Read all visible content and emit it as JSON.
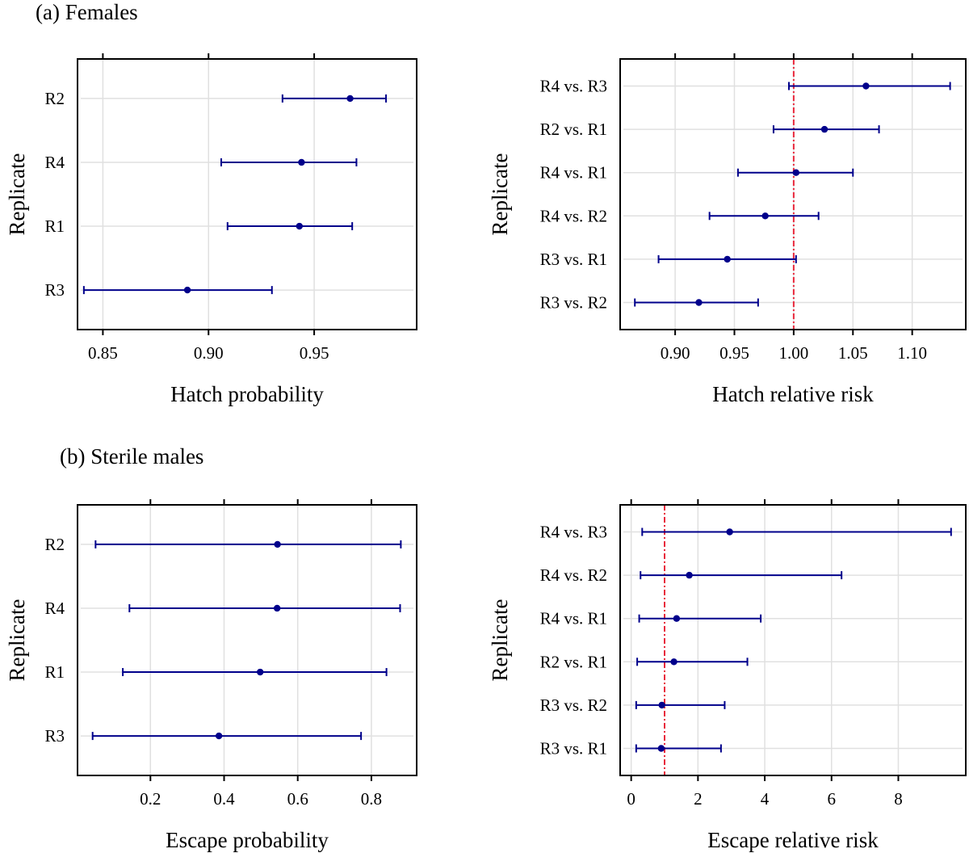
{
  "section_labels": {
    "a": "(a) Females",
    "b": "(b) Sterile males"
  },
  "colors": {
    "marker": "#00008B",
    "reference": "#E8283C",
    "grid": "#E0E0E0",
    "frame": "#000000"
  },
  "chart_data": [
    {
      "type": "scatter",
      "subtype": "forest-errorbar",
      "section": "a",
      "xlabel": "Hatch probability",
      "ylabel": "Replicate",
      "categories": [
        "R2",
        "R4",
        "R1",
        "R3"
      ],
      "estimate": [
        0.967,
        0.944,
        0.943,
        0.89
      ],
      "lower": [
        0.935,
        0.906,
        0.909,
        0.841
      ],
      "upper": [
        0.984,
        0.97,
        0.968,
        0.93
      ],
      "xlim": [
        0.838,
        0.9985
      ],
      "xticks": [
        0.85,
        0.9,
        0.95
      ],
      "xtick_labels": [
        "0.85",
        "0.90",
        "0.95"
      ],
      "reference_line": null,
      "grid": true
    },
    {
      "type": "scatter",
      "subtype": "forest-errorbar",
      "section": "a",
      "xlabel": "Hatch relative risk",
      "ylabel": "Replicate",
      "categories": [
        "R4 vs. R3",
        "R2 vs. R1",
        "R4 vs. R1",
        "R4 vs. R2",
        "R3 vs. R1",
        "R3 vs. R2"
      ],
      "estimate": [
        1.061,
        1.026,
        1.002,
        0.976,
        0.944,
        0.92
      ],
      "lower": [
        0.996,
        0.983,
        0.953,
        0.929,
        0.886,
        0.866
      ],
      "upper": [
        1.132,
        1.072,
        1.05,
        1.021,
        1.002,
        0.97
      ],
      "xlim": [
        0.8536,
        1.1452
      ],
      "xticks": [
        0.9,
        0.95,
        1.0,
        1.05,
        1.1
      ],
      "xtick_labels": [
        "0.90",
        "0.95",
        "1.00",
        "1.05",
        "1.10"
      ],
      "reference_line": 1.0,
      "grid": true
    },
    {
      "type": "scatter",
      "subtype": "forest-errorbar",
      "section": "b",
      "xlabel": "Escape probability",
      "ylabel": "Replicate",
      "categories": [
        "R2",
        "R4",
        "R1",
        "R3"
      ],
      "estimate": [
        0.545,
        0.544,
        0.498,
        0.386
      ],
      "lower": [
        0.051,
        0.143,
        0.125,
        0.043
      ],
      "upper": [
        0.88,
        0.878,
        0.841,
        0.772
      ],
      "xlim": [
        0.002,
        0.923
      ],
      "xticks": [
        0.2,
        0.4,
        0.6,
        0.8
      ],
      "xtick_labels": [
        "0.2",
        "0.4",
        "0.6",
        "0.8"
      ],
      "reference_line": null,
      "grid": true
    },
    {
      "type": "scatter",
      "subtype": "forest-errorbar",
      "section": "b",
      "xlabel": "Escape relative risk",
      "ylabel": "Replicate",
      "categories": [
        "R4 vs. R3",
        "R4 vs. R2",
        "R4 vs. R1",
        "R2 vs. R1",
        "R3 vs. R2",
        "R3 vs. R1"
      ],
      "estimate": [
        2.95,
        1.74,
        1.36,
        1.28,
        0.92,
        0.9
      ],
      "lower": [
        0.33,
        0.28,
        0.24,
        0.18,
        0.15,
        0.15
      ],
      "upper": [
        9.58,
        6.3,
        3.88,
        3.48,
        2.8,
        2.69
      ],
      "xlim": [
        -0.33,
        10.02
      ],
      "xticks": [
        0,
        2,
        4,
        6,
        8
      ],
      "xtick_labels": [
        "0",
        "2",
        "4",
        "6",
        "8"
      ],
      "reference_line": 1.0,
      "grid": true
    }
  ]
}
